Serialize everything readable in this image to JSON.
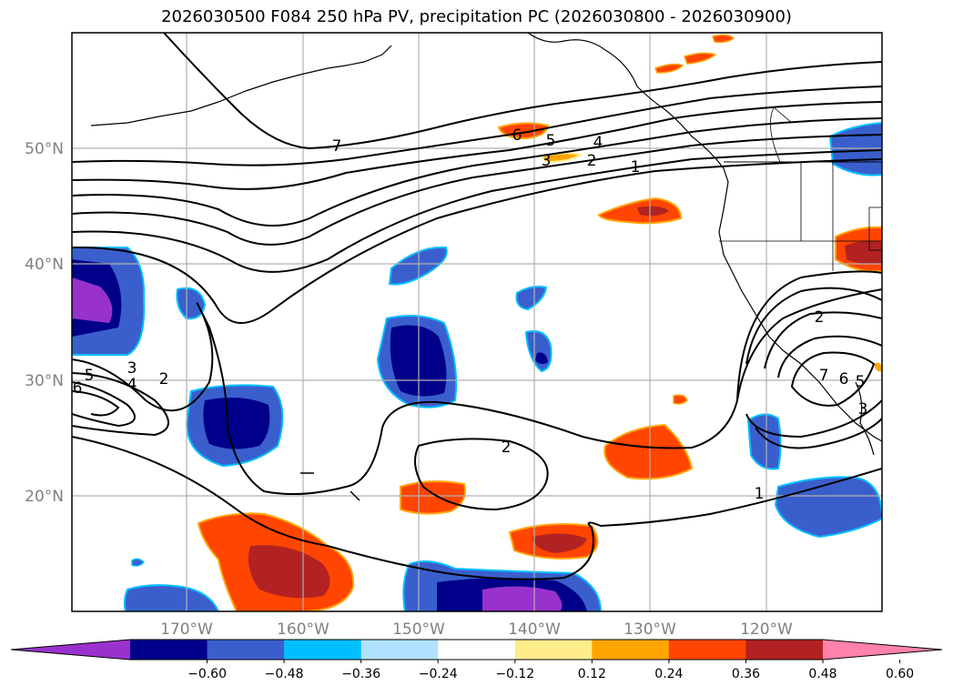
{
  "title": "2026030500 F084 250 hPa PV, precipitation PC (2026030800 - 2026030900)",
  "lat_labels": [
    "50°N",
    "40°N",
    "30°N",
    "20°N"
  ],
  "lon_labels": [
    "170°W",
    "160°W",
    "150°W",
    "140°W",
    "130°W",
    "120°W"
  ],
  "colorbar": {
    "colors": [
      "#9932cc",
      "#00008b",
      "#3a5fcd",
      "#00bfff",
      "#b0e2ff",
      "#ffffff",
      "#ffec8b",
      "#ffa500",
      "#ff4500",
      "#b22222",
      "#ff82ab"
    ],
    "ticks": [
      "−0.60",
      "−0.48",
      "−0.36",
      "−0.24",
      "−0.12",
      "0.12",
      "0.24",
      "0.36",
      "0.48",
      "0.60"
    ]
  },
  "contour_labels": [
    "7",
    "6",
    "5",
    "4",
    "3",
    "2",
    "1",
    "5",
    "3",
    "2",
    "4",
    "6",
    "2",
    "1",
    "2",
    "7",
    "6",
    "5",
    "3"
  ]
}
